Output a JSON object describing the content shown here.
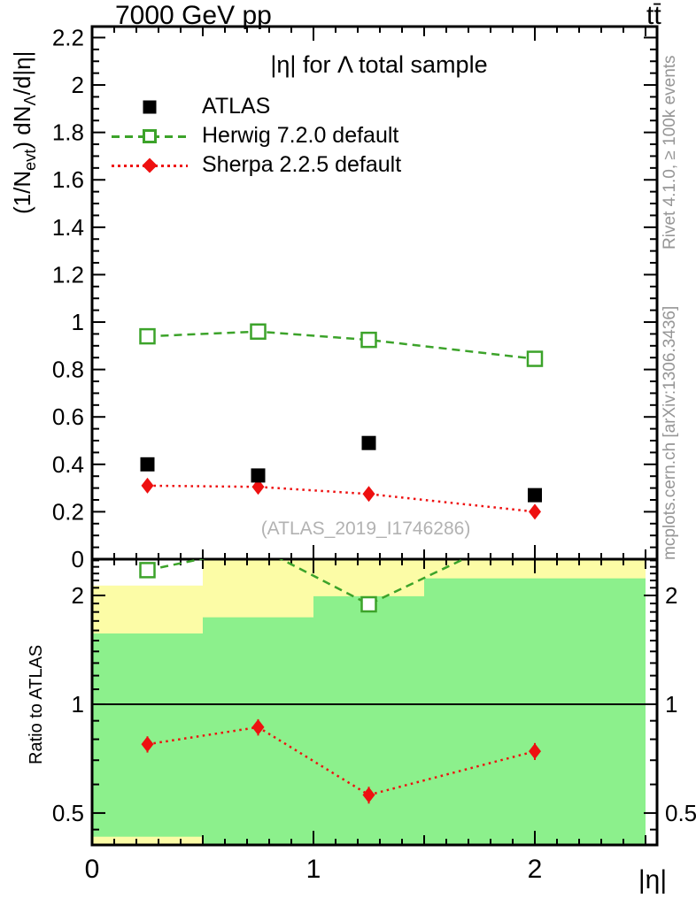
{
  "header": {
    "left_label": "7000 GeV pp",
    "right_label": "tt̄"
  },
  "side_notes": {
    "top": "Rivet 4.1.0, ≥ 100k events",
    "bottom": "mcplots.cern.ch [arXiv:1306.3436]"
  },
  "watermark": "(ATLAS_2019_I1746286)",
  "colors": {
    "atlas": "#000000",
    "herwig": "#3ca32a",
    "sherpa": "#ee1010",
    "band_yellow": "#fcfca6",
    "band_green": "#8cf08c",
    "frame": "#000000",
    "note_gray": "#969696",
    "watermark_gray": "#b2b2b2"
  },
  "chart_data": {
    "type": "line",
    "title": "|η| for Λ total sample",
    "xlabel": "|η|",
    "ylabel_ratio": "Ratio to ATLAS",
    "ylabel_main_segments": [
      {
        "text": "(1/N"
      },
      {
        "text": "evt",
        "sub": true
      },
      {
        "text": ") dN"
      },
      {
        "text": "Λ",
        "sub": true
      },
      {
        "text": "/d|η|"
      }
    ],
    "x_values": [
      0.25,
      0.75,
      1.25,
      2.0
    ],
    "bin_edges": [
      0,
      0.5,
      1.0,
      1.5,
      2.5
    ],
    "x_axis": {
      "min": 0,
      "max": 2.552,
      "minor_step": 0.1,
      "ticks": [
        {
          "v": 0,
          "label": "0"
        },
        {
          "v": 1,
          "label": "1"
        },
        {
          "v": 2,
          "label": "2"
        }
      ]
    },
    "main_axis": {
      "min": 0,
      "max": 2.2465,
      "major_step": 0.2,
      "minor_step": 0.05,
      "ticks": [
        {
          "v": 0,
          "label": "0"
        },
        {
          "v": 0.2,
          "label": "0.2"
        },
        {
          "v": 0.4,
          "label": "0.4"
        },
        {
          "v": 0.6,
          "label": "0.6"
        },
        {
          "v": 0.8,
          "label": "0.8"
        },
        {
          "v": 1,
          "label": "1"
        },
        {
          "v": 1.2,
          "label": "1.2"
        },
        {
          "v": 1.4,
          "label": "1.4"
        },
        {
          "v": 1.6,
          "label": "1.6"
        },
        {
          "v": 1.8,
          "label": "1.8"
        },
        {
          "v": 2,
          "label": "2"
        },
        {
          "v": 2.2,
          "label": "2.2"
        }
      ]
    },
    "ratio_axis": {
      "scale": "log",
      "min": 0.408,
      "max": 2.52,
      "ticks": [
        {
          "v": 0.5,
          "label": "0.5"
        },
        {
          "v": 1,
          "label": "1"
        },
        {
          "v": 2,
          "label": "2"
        }
      ]
    },
    "series": [
      {
        "name": "ATLAS",
        "legend": "ATLAS",
        "marker": "filled-square",
        "line": "none",
        "color_key": "atlas",
        "values": [
          0.4,
          0.353,
          0.49,
          0.27
        ],
        "errors": [
          0.015,
          0.013,
          0.015,
          0.013
        ]
      },
      {
        "name": "Herwig",
        "legend": "Herwig 7.2.0 default",
        "marker": "open-square",
        "line": "dashed",
        "color_key": "herwig",
        "values": [
          0.94,
          0.96,
          0.925,
          0.845
        ],
        "errors": [
          0.02,
          0.02,
          0.02,
          0.02
        ]
      },
      {
        "name": "Sherpa",
        "legend": "Sherpa 2.2.5 default",
        "marker": "filled-diamond",
        "line": "dotted",
        "color_key": "sherpa",
        "values": [
          0.31,
          0.305,
          0.275,
          0.2
        ],
        "errors": [
          0.015,
          0.012,
          0.012,
          0.012
        ]
      }
    ],
    "ratio": {
      "herwig_values": [
        2.35,
        2.72,
        1.89,
        3.13
      ],
      "sherpa_values": [
        0.775,
        0.864,
        0.561,
        0.741
      ],
      "sherpa_errors": [
        0.04,
        0.045,
        0.03,
        0.04
      ],
      "bands": {
        "yellow_half_width": [
          1.13,
          1.6,
          1.8,
          1.9
        ],
        "green_half_width": [
          0.57,
          0.74,
          0.99,
          1.23
        ]
      }
    }
  }
}
